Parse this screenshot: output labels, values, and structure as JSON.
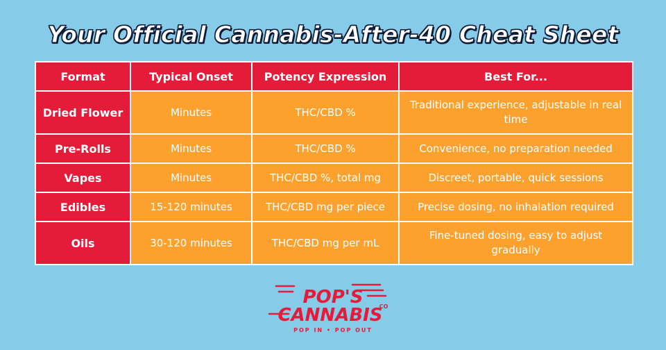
{
  "title": "Your Official Cannabis-After-40 Cheat Sheet",
  "table": {
    "headers": [
      "Format",
      "Typical Onset",
      "Potency Expression",
      "Best For..."
    ],
    "rows": [
      {
        "format": "Dried Flower",
        "onset": "Minutes",
        "potency": "THC/CBD %",
        "best": "Traditional experience, adjustable in real time"
      },
      {
        "format": "Pre-Rolls",
        "onset": "Minutes",
        "potency": "THC/CBD %",
        "best": "Convenience, no preparation needed"
      },
      {
        "format": "Vapes",
        "onset": "Minutes",
        "potency": "THC/CBD %, total mg",
        "best": "Discreet, portable, quick sessions"
      },
      {
        "format": "Edibles",
        "onset": "15-120 minutes",
        "potency": "THC/CBD mg per piece",
        "best": "Precise dosing, no inhalation required"
      },
      {
        "format": "Oils",
        "onset": "30-120 minutes",
        "potency": "THC/CBD mg per mL",
        "best": "Fine-tuned dosing, easy to adjust gradually"
      }
    ]
  },
  "logo": {
    "line1": "POP'S",
    "line2": "CANNABIS",
    "co": "CO",
    "tagline": "POP IN • POP OUT"
  },
  "colors": {
    "background": "#86cbe8",
    "header_red": "#e51b3a",
    "cell_orange": "#fca12e",
    "title_outline": "#0c1a35"
  }
}
